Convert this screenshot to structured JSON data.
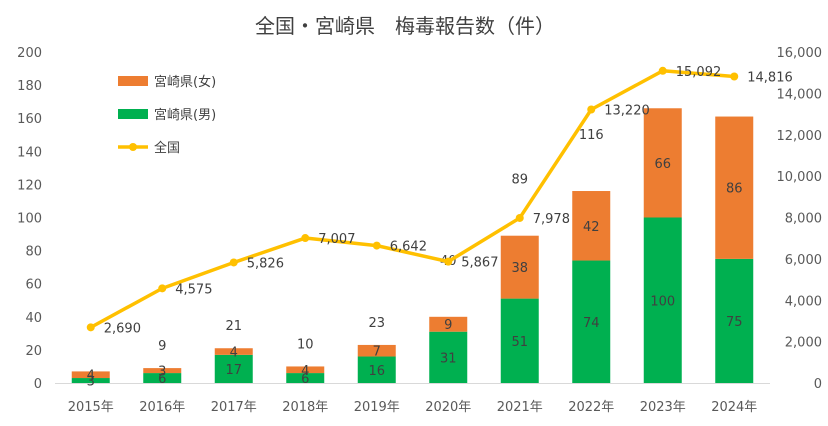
{
  "chart_data": {
    "type": "bar",
    "title": "全国・宮崎県　梅毒報告数（件）",
    "categories": [
      "2015年",
      "2016年",
      "2017年",
      "2018年",
      "2019年",
      "2020年",
      "2021年",
      "2022年",
      "2023年",
      "2024年"
    ],
    "series": [
      {
        "name": "宮崎県(男)",
        "type": "bar",
        "axis": "left",
        "stack": "pref",
        "color": "#00B050",
        "values": [
          3,
          6,
          17,
          6,
          16,
          31,
          51,
          74,
          100,
          75
        ]
      },
      {
        "name": "宮崎県(女)",
        "type": "bar",
        "axis": "left",
        "stack": "pref",
        "color": "#ED7D31",
        "values": [
          4,
          3,
          4,
          4,
          7,
          9,
          38,
          42,
          66,
          86
        ]
      },
      {
        "name": "全国",
        "type": "line",
        "axis": "right",
        "color": "#FFC000",
        "values": [
          2690,
          4575,
          5826,
          7007,
          6642,
          5867,
          7978,
          13220,
          15092,
          14816
        ],
        "labels": [
          "2,690",
          "4,575",
          "5,826",
          "7,007",
          "6,642",
          "5,867",
          "7,978",
          "13,220",
          "15,092",
          "14,816"
        ]
      }
    ],
    "totals": [
      null,
      9,
      21,
      10,
      23,
      40,
      89,
      116,
      null,
      null
    ],
    "y_left": {
      "min": 0,
      "max": 200,
      "ticks": [
        "0",
        "20",
        "40",
        "60",
        "80",
        "100",
        "120",
        "140",
        "160",
        "180",
        "200"
      ]
    },
    "y_right": {
      "min": 0,
      "max": 16000,
      "ticks": [
        "0",
        "2,000",
        "4,000",
        "6,000",
        "8,000",
        "10,000",
        "12,000",
        "14,000",
        "16,000"
      ]
    },
    "legend": {
      "position": "top-left",
      "entries": [
        "宮崎県(女)",
        "宮崎県(男)",
        "全国"
      ]
    },
    "grid": false
  }
}
